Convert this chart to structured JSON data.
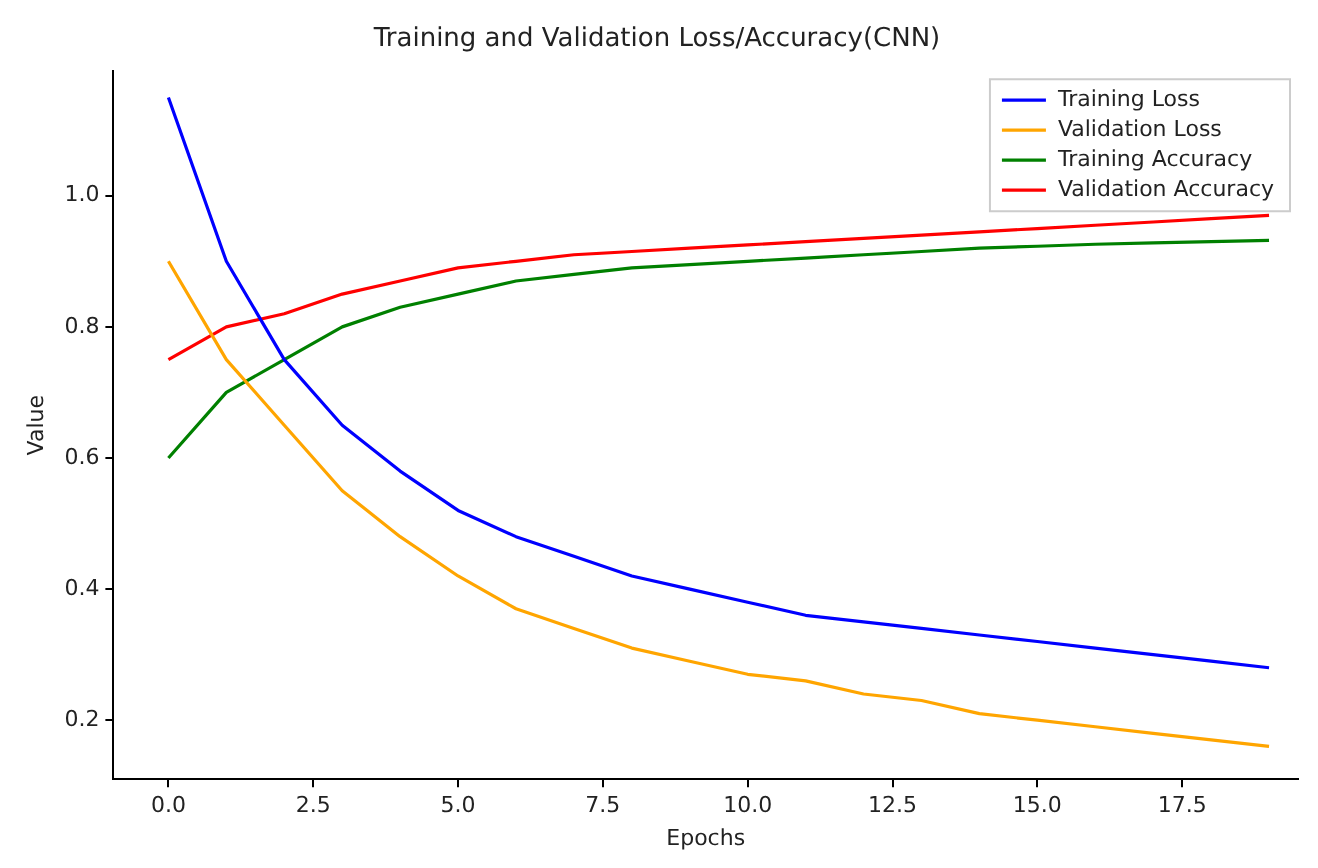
{
  "chart_data": {
    "type": "line",
    "title": "Training and Validation Loss/Accuracy(CNN)",
    "xlabel": "Epochs",
    "ylabel": "Value",
    "x": [
      0,
      1,
      2,
      3,
      4,
      5,
      6,
      7,
      8,
      9,
      10,
      11,
      12,
      13,
      14,
      15,
      16,
      17,
      18,
      19
    ],
    "xlim": [
      -0.95,
      19.5
    ],
    "xticks": [
      {
        "value": 0,
        "label": "0.0"
      },
      {
        "value": 2.5,
        "label": "2.5"
      },
      {
        "value": 5,
        "label": "5.0"
      },
      {
        "value": 7.5,
        "label": "7.5"
      },
      {
        "value": 10,
        "label": "10.0"
      },
      {
        "value": 12.5,
        "label": "12.5"
      },
      {
        "value": 15,
        "label": "15.0"
      },
      {
        "value": 17.5,
        "label": "17.5"
      }
    ],
    "ylim": [
      0.11,
      1.19
    ],
    "yticks": [
      0.2,
      0.4,
      0.6,
      0.8,
      {
        "value": 1,
        "label": "1.0"
      }
    ],
    "legend": "top right",
    "grid": false,
    "marker": "none",
    "line_style": "solid",
    "series": [
      {
        "name": "Training Loss",
        "color": "#0000ff",
        "values": [
          1.15,
          0.9,
          0.75,
          0.65,
          0.58,
          0.52,
          0.48,
          0.45,
          0.42,
          0.4,
          0.38,
          0.36,
          0.35,
          0.34,
          0.33,
          0.32,
          0.31,
          0.3,
          0.29,
          0.28
        ]
      },
      {
        "name": "Validation Loss",
        "color": "#ffa500",
        "values": [
          0.9,
          0.75,
          0.65,
          0.55,
          0.48,
          0.42,
          0.37,
          0.34,
          0.31,
          0.29,
          0.27,
          0.26,
          0.24,
          0.23,
          0.21,
          0.2,
          0.19,
          0.18,
          0.17,
          0.16
        ]
      },
      {
        "name": "Training Accuracy",
        "color": "#008000",
        "values": [
          0.6,
          0.7,
          0.75,
          0.8,
          0.83,
          0.85,
          0.87,
          0.88,
          0.89,
          0.895,
          0.9,
          0.905,
          0.91,
          0.915,
          0.92,
          0.923,
          0.926,
          0.928,
          0.93,
          0.932
        ]
      },
      {
        "name": "Validation Accuracy",
        "color": "#ff0000",
        "values": [
          0.75,
          0.8,
          0.82,
          0.85,
          0.87,
          0.89,
          0.9,
          0.91,
          0.915,
          0.92,
          0.925,
          0.93,
          0.935,
          0.94,
          0.945,
          0.95,
          0.955,
          0.96,
          0.965,
          0.97
        ]
      }
    ]
  }
}
